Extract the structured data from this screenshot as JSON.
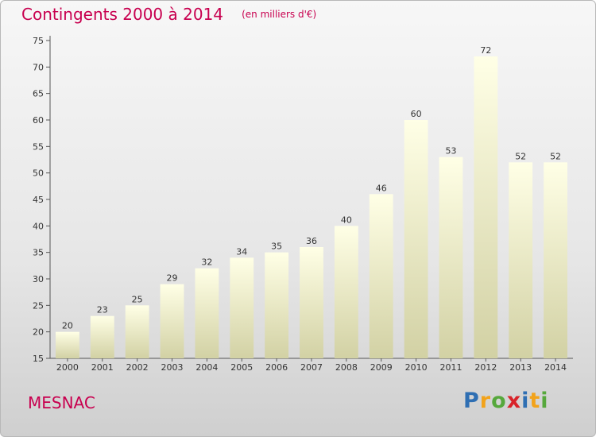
{
  "header": {
    "title": "Contingents 2000 à 2014",
    "subtitle": "(en milliers d'€)"
  },
  "footer": {
    "place": "MESNAC",
    "brand": {
      "text": "Proxiti",
      "letters": [
        {
          "ch": "P",
          "color": "#2f6fb3"
        },
        {
          "ch": "r",
          "color": "#f2a31b"
        },
        {
          "ch": "o",
          "color": "#56a83c"
        },
        {
          "ch": "x",
          "color": "#d8232a"
        },
        {
          "ch": "i",
          "color": "#2f6fb3"
        },
        {
          "ch": "t",
          "color": "#f2a31b"
        },
        {
          "ch": "i",
          "color": "#56a83c"
        }
      ]
    }
  },
  "colors": {
    "accent": "#c8004f",
    "bar_top": "#ffffe6",
    "bar_bottom": "#d2d1a4"
  },
  "chart_data": {
    "type": "bar",
    "title": "Contingents 2000 à 2014",
    "subtitle": "(en milliers d'€)",
    "xlabel": "",
    "ylabel": "",
    "ylim": [
      15,
      75
    ],
    "ytick_step": 5,
    "grid": false,
    "categories": [
      "2000",
      "2001",
      "2002",
      "2003",
      "2004",
      "2005",
      "2006",
      "2007",
      "2008",
      "2009",
      "2010",
      "2011",
      "2012",
      "2013",
      "2014"
    ],
    "values": [
      20,
      23,
      25,
      29,
      32,
      34,
      35,
      36,
      40,
      46,
      60,
      53,
      72,
      52,
      52
    ]
  }
}
